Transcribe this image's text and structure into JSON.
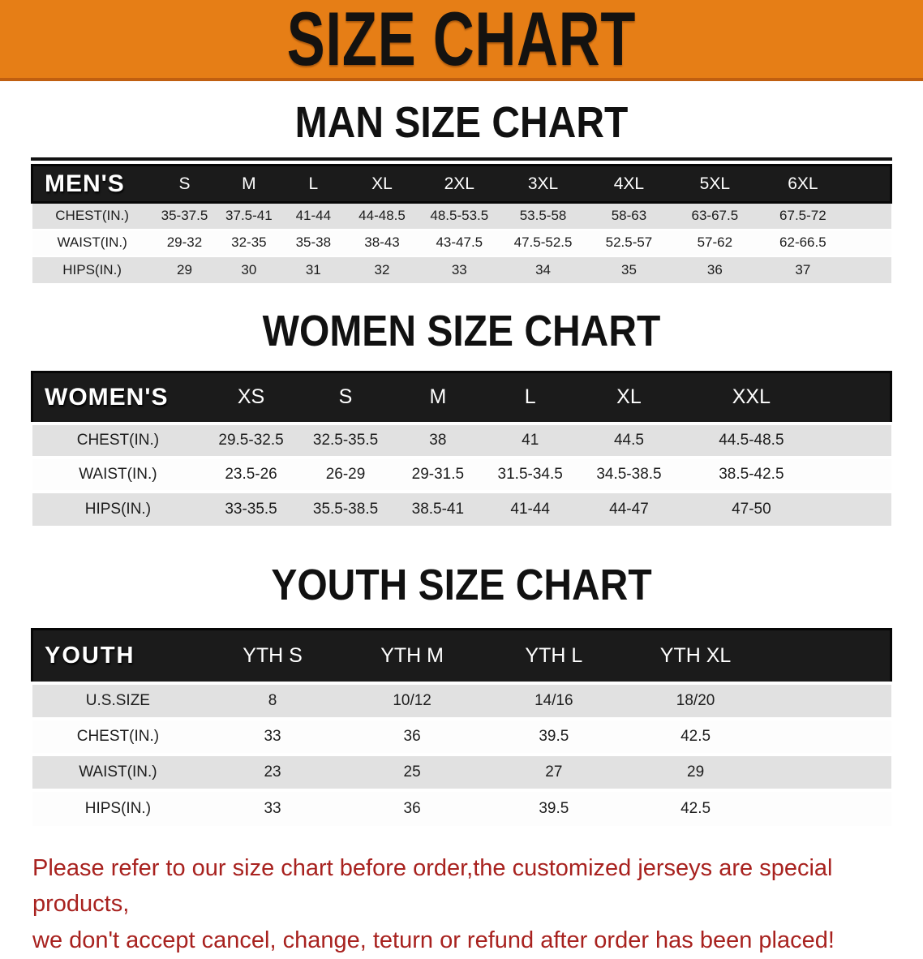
{
  "banner": {
    "title": "SIZE CHART",
    "bg_color": "#E67E16",
    "text_color": "#141210"
  },
  "sections": [
    {
      "heading": "MAN SIZE CHART",
      "table": {
        "label": "MEN'S",
        "columns": [
          "S",
          "M",
          "L",
          "XL",
          "2XL",
          "3XL",
          "4XL",
          "5XL",
          "6XL"
        ],
        "rows": [
          {
            "label": "CHEST(IN.)",
            "values": [
              "35-37.5",
              "37.5-41",
              "41-44",
              "44-48.5",
              "48.5-53.5",
              "53.5-58",
              "58-63",
              "63-67.5",
              "67.5-72"
            ]
          },
          {
            "label": "WAIST(IN.)",
            "values": [
              "29-32",
              "32-35",
              "35-38",
              "38-43",
              "43-47.5",
              "47.5-52.5",
              "52.5-57",
              "57-62",
              "62-66.5"
            ]
          },
          {
            "label": "HIPS(IN.)",
            "values": [
              "29",
              "30",
              "31",
              "32",
              "33",
              "34",
              "35",
              "36",
              "37"
            ]
          }
        ]
      }
    },
    {
      "heading": "WOMEN SIZE CHART",
      "table": {
        "label": "WOMEN'S",
        "columns": [
          "XS",
          "S",
          "M",
          "L",
          "XL",
          "XXL"
        ],
        "rows": [
          {
            "label": "CHEST(IN.)",
            "values": [
              "29.5-32.5",
              "32.5-35.5",
              "38",
              "41",
              "44.5",
              "44.5-48.5"
            ]
          },
          {
            "label": "WAIST(IN.)",
            "values": [
              "23.5-26",
              "26-29",
              "29-31.5",
              "31.5-34.5",
              "34.5-38.5",
              "38.5-42.5"
            ]
          },
          {
            "label": "HIPS(IN.)",
            "values": [
              "33-35.5",
              "35.5-38.5",
              "38.5-41",
              "41-44",
              "44-47",
              "47-50"
            ]
          }
        ]
      }
    },
    {
      "heading": "YOUTH SIZE CHART",
      "table": {
        "label": "YOUTH",
        "columns": [
          "YTH S",
          "YTH M",
          "YTH L",
          "YTH XL"
        ],
        "rows": [
          {
            "label": "U.S.SIZE",
            "values": [
              "8",
              "10/12",
              "14/16",
              "18/20"
            ]
          },
          {
            "label": "CHEST(IN.)",
            "values": [
              "33",
              "36",
              "39.5",
              "42.5"
            ]
          },
          {
            "label": "WAIST(IN.)",
            "values": [
              "23",
              "25",
              "27",
              "29"
            ]
          },
          {
            "label": "HIPS(IN.)",
            "values": [
              "33",
              "36",
              "39.5",
              "42.5"
            ]
          }
        ]
      }
    }
  ],
  "footer": {
    "line1": "Please refer to our size chart before order,the customized jerseys are special products,",
    "line2": "we don't accept cancel, change, teturn or refund after order has been placed!",
    "text_color": "#A8221F"
  }
}
